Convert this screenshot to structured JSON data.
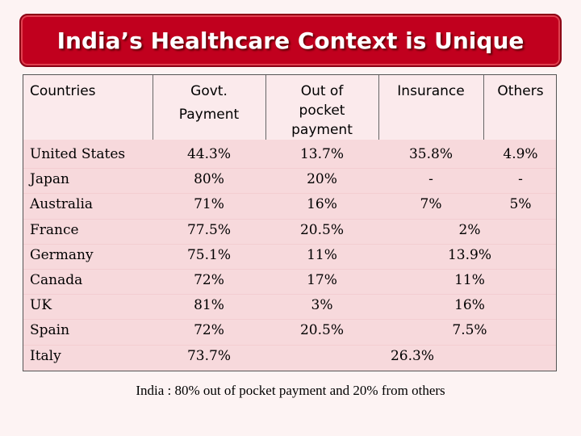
{
  "title": "India’s Healthcare Context is Unique",
  "columns": {
    "countries": "Countries",
    "govt": [
      "Govt.",
      "Payment"
    ],
    "oop": [
      "Out of",
      "pocket",
      "payment"
    ],
    "insurance": "Insurance",
    "others": "Others"
  },
  "rows": [
    {
      "country": "United States",
      "govt": "44.3%",
      "oop": "13.7%",
      "insurance": "35.8%",
      "others": "4.9%"
    },
    {
      "country": "Japan",
      "govt": "80%",
      "oop": "20%",
      "insurance": "-",
      "others": "-"
    },
    {
      "country": "Australia",
      "govt": "71%",
      "oop": "16%",
      "insurance": "7%",
      "others": "5%"
    },
    {
      "country": "France",
      "govt": "77.5%",
      "oop": "20.5%",
      "combined": "2%"
    },
    {
      "country": "Germany",
      "govt": "75.1%",
      "oop": "11%",
      "combined": "13.9%"
    },
    {
      "country": "Canada",
      "govt": "72%",
      "oop": "17%",
      "combined": "11%"
    },
    {
      "country": "UK",
      "govt": "81%",
      "oop": "3%",
      "combined": "16%"
    },
    {
      "country": "Spain",
      "govt": "72%",
      "oop": "20.5%",
      "combined": "7.5%"
    },
    {
      "country": "Italy",
      "govt": "73.7%",
      "combined_all": "26.3%"
    }
  ],
  "footnote": "India : 80% out of pocket payment and 20% from others",
  "colors": {
    "banner": "#c1001e",
    "table_bg": "#f7d9dc",
    "page_bg": "#fdf3f3"
  }
}
